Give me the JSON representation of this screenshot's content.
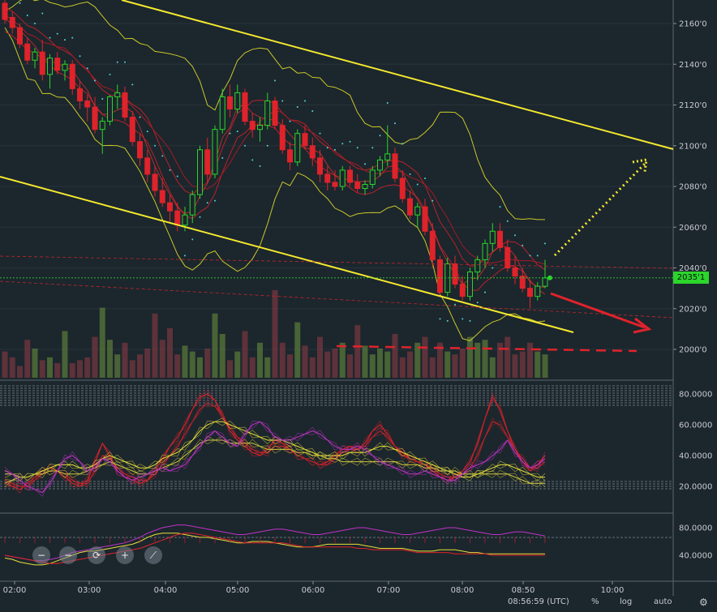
{
  "price_axis": {
    "labels": [
      "2160'0",
      "2140'0",
      "2120'0",
      "2100'0",
      "2080'0",
      "2060'0",
      "2040'0",
      "2020'0",
      "2000'0"
    ],
    "values": [
      2160,
      2140,
      2120,
      2100,
      2080,
      2060,
      2040,
      2020,
      2000
    ],
    "current_price_label": "2035'1",
    "current_price": 2035.1
  },
  "time_axis": {
    "labels": [
      "02:00",
      "03:00",
      "04:00",
      "05:00",
      "06:00",
      "07:00",
      "08:00",
      "08:50",
      "10:00"
    ]
  },
  "indicator1_axis": {
    "labels": [
      "80.0000",
      "60.0000",
      "40.0000",
      "20.0000"
    ],
    "values": [
      80,
      60,
      40,
      20
    ]
  },
  "indicator2_axis": {
    "labels": [
      "80.0000",
      "40.0000"
    ],
    "values": [
      80,
      40
    ]
  },
  "status_bar": {
    "clock": "08:56:59 (UTC)",
    "percent_label": "%",
    "log_label": "log",
    "auto_label": "auto"
  },
  "zoom_controls": {
    "zoom_out_label": "−",
    "zoom_out2_label": "−",
    "reset_label": "⟳",
    "zoom_in_label": "+",
    "draw_label": "⟋"
  },
  "colors": {
    "background": "#1c262d",
    "up_candle": "#2bd52b",
    "down_candle": "#e0232b",
    "trendline": "#f5ea2f",
    "arrow_down": "#e0232b",
    "arrow_up": "#f5ea2f",
    "price_line": "#2bd52b",
    "psar": "#4fd8d8"
  },
  "chart_data": [
    {
      "type": "candlestick",
      "title": "",
      "x_axis": "time (UTC), 5-minute bars",
      "y_axis": "price",
      "ylim": [
        1988,
        2170
      ],
      "x_ticks": [
        "02:00",
        "03:00",
        "04:00",
        "05:00",
        "06:00",
        "07:00",
        "08:00",
        "08:50",
        "10:00"
      ],
      "y_ticks": [
        2000,
        2020,
        2040,
        2060,
        2080,
        2100,
        2120,
        2140,
        2160
      ],
      "last_price": 2035.1,
      "ohlc": [
        [
          2170,
          2172,
          2160,
          2162
        ],
        [
          2163,
          2166,
          2155,
          2158
        ],
        [
          2158,
          2160,
          2148,
          2150
        ],
        [
          2150,
          2153,
          2140,
          2142
        ],
        [
          2142,
          2148,
          2138,
          2146
        ],
        [
          2146,
          2152,
          2132,
          2135
        ],
        [
          2135,
          2145,
          2128,
          2143
        ],
        [
          2143,
          2146,
          2135,
          2137
        ],
        [
          2137,
          2142,
          2132,
          2140
        ],
        [
          2140,
          2142,
          2125,
          2128
        ],
        [
          2128,
          2132,
          2118,
          2122
        ],
        [
          2122,
          2125,
          2112,
          2119
        ],
        [
          2119,
          2124,
          2106,
          2108
        ],
        [
          2108,
          2114,
          2096,
          2112
        ],
        [
          2112,
          2125,
          2110,
          2124
        ],
        [
          2124,
          2130,
          2118,
          2126
        ],
        [
          2126,
          2129,
          2112,
          2114
        ],
        [
          2114,
          2117,
          2100,
          2102
        ],
        [
          2102,
          2106,
          2090,
          2094
        ],
        [
          2094,
          2098,
          2082,
          2086
        ],
        [
          2086,
          2090,
          2075,
          2078
        ],
        [
          2078,
          2084,
          2070,
          2072
        ],
        [
          2072,
          2076,
          2062,
          2068
        ],
        [
          2068,
          2072,
          2058,
          2061
        ],
        [
          2061,
          2070,
          2058,
          2066
        ],
        [
          2066,
          2078,
          2062,
          2076
        ],
        [
          2076,
          2100,
          2074,
          2098
        ],
        [
          2098,
          2104,
          2082,
          2086
        ],
        [
          2086,
          2110,
          2084,
          2108
        ],
        [
          2108,
          2128,
          2106,
          2124
        ],
        [
          2124,
          2130,
          2114,
          2118
        ],
        [
          2118,
          2130,
          2116,
          2126
        ],
        [
          2126,
          2128,
          2110,
          2112
        ],
        [
          2112,
          2116,
          2104,
          2108
        ],
        [
          2108,
          2114,
          2102,
          2110
        ],
        [
          2110,
          2126,
          2108,
          2122
        ],
        [
          2122,
          2124,
          2108,
          2110
        ],
        [
          2110,
          2113,
          2096,
          2098
        ],
        [
          2098,
          2102,
          2088,
          2092
        ],
        [
          2092,
          2108,
          2090,
          2106
        ],
        [
          2106,
          2110,
          2098,
          2100
        ],
        [
          2100,
          2104,
          2090,
          2094
        ],
        [
          2094,
          2098,
          2082,
          2086
        ],
        [
          2086,
          2090,
          2078,
          2082
        ],
        [
          2082,
          2088,
          2078,
          2080
        ],
        [
          2080,
          2090,
          2078,
          2088
        ],
        [
          2088,
          2090,
          2080,
          2082
        ],
        [
          2082,
          2086,
          2077,
          2079
        ],
        [
          2079,
          2083,
          2076,
          2081
        ],
        [
          2081,
          2090,
          2079,
          2088
        ],
        [
          2088,
          2095,
          2085,
          2093
        ],
        [
          2093,
          2110,
          2090,
          2096
        ],
        [
          2096,
          2099,
          2082,
          2084
        ],
        [
          2084,
          2088,
          2072,
          2074
        ],
        [
          2074,
          2078,
          2064,
          2066
        ],
        [
          2066,
          2072,
          2060,
          2070
        ],
        [
          2070,
          2074,
          2056,
          2058
        ],
        [
          2058,
          2062,
          2040,
          2044
        ],
        [
          2044,
          2046,
          2026,
          2028
        ],
        [
          2028,
          2045,
          2026,
          2042
        ],
        [
          2042,
          2046,
          2030,
          2032
        ],
        [
          2032,
          2036,
          2024,
          2026
        ],
        [
          2026,
          2040,
          2024,
          2038
        ],
        [
          2038,
          2046,
          2034,
          2044
        ],
        [
          2044,
          2054,
          2040,
          2052
        ],
        [
          2052,
          2062,
          2048,
          2058
        ],
        [
          2058,
          2062,
          2048,
          2050
        ],
        [
          2050,
          2054,
          2038,
          2040
        ],
        [
          2040,
          2046,
          2032,
          2036
        ],
        [
          2036,
          2040,
          2028,
          2030
        ],
        [
          2030,
          2034,
          2020,
          2026
        ],
        [
          2026,
          2033,
          2024,
          2031
        ],
        [
          2031,
          2044,
          2030,
          2035.1
        ]
      ],
      "volume": [
        9,
        7,
        4,
        13,
        10,
        6,
        7,
        5,
        16,
        5,
        6,
        7,
        14,
        24,
        13,
        8,
        12,
        6,
        8,
        10,
        22,
        13,
        17,
        8,
        11,
        9,
        7,
        10,
        22,
        15,
        6,
        9,
        16,
        7,
        12,
        7,
        30,
        12,
        8,
        19,
        11,
        7,
        14,
        9,
        10,
        12,
        8,
        18,
        11,
        8,
        10,
        9,
        15,
        7,
        9,
        12,
        14,
        7,
        12,
        9,
        8,
        10,
        14,
        12,
        13,
        7,
        12,
        14,
        8,
        9,
        12,
        9,
        8
      ]
    },
    {
      "type": "line",
      "title": "",
      "ylim": [
        8,
        86
      ],
      "y_ticks": [
        20,
        40,
        60,
        80
      ],
      "description_values": "oscillator panel; values 0-100",
      "series": [
        {
          "values": [
            22,
            20,
            18,
            22,
            26,
            30,
            32,
            30,
            26,
            22,
            20,
            24,
            36,
            48,
            40,
            30,
            26,
            24,
            22,
            24,
            30,
            38,
            46,
            52,
            60,
            70,
            78,
            80,
            76,
            66,
            56,
            50,
            46,
            42,
            40,
            44,
            50,
            48,
            44,
            40,
            38,
            36,
            34,
            36,
            40,
            44,
            46,
            44,
            48,
            56,
            60,
            54,
            46,
            40,
            38,
            36,
            34,
            30,
            26,
            24,
            26,
            30,
            36,
            48,
            64,
            78,
            70,
            56,
            44,
            36,
            30,
            34,
            40
          ]
        },
        {
          "values": [
            24,
            22,
            20,
            20,
            24,
            28,
            30,
            30,
            28,
            24,
            22,
            22,
            30,
            40,
            38,
            32,
            28,
            26,
            24,
            24,
            28,
            34,
            40,
            46,
            54,
            62,
            70,
            74,
            72,
            66,
            58,
            52,
            48,
            44,
            42,
            42,
            46,
            46,
            44,
            40,
            38,
            36,
            34,
            34,
            38,
            42,
            44,
            44,
            46,
            52,
            56,
            52,
            46,
            42,
            38,
            36,
            34,
            32,
            28,
            26,
            26,
            28,
            32,
            40,
            52,
            62,
            60,
            52,
            44,
            38,
            32,
            32,
            36
          ]
        },
        {
          "values": [
            28,
            28,
            26,
            26,
            28,
            30,
            32,
            34,
            34,
            34,
            32,
            32,
            34,
            38,
            40,
            38,
            36,
            34,
            32,
            32,
            34,
            38,
            40,
            42,
            46,
            50,
            56,
            60,
            62,
            62,
            60,
            58,
            56,
            54,
            52,
            50,
            50,
            50,
            48,
            46,
            44,
            42,
            40,
            40,
            40,
            40,
            42,
            42,
            42,
            44,
            46,
            46,
            44,
            42,
            40,
            38,
            36,
            34,
            32,
            30,
            28,
            26,
            26,
            28,
            30,
            32,
            34,
            34,
            32,
            30,
            28,
            26,
            26
          ]
        },
        {
          "values": [
            22,
            24,
            26,
            26,
            28,
            28,
            30,
            30,
            28,
            28,
            28,
            30,
            32,
            34,
            36,
            34,
            32,
            30,
            28,
            28,
            30,
            32,
            34,
            36,
            40,
            44,
            48,
            50,
            50,
            50,
            48,
            48,
            48,
            48,
            46,
            44,
            44,
            44,
            44,
            42,
            42,
            40,
            40,
            38,
            38,
            36,
            36,
            36,
            36,
            36,
            36,
            36,
            36,
            34,
            34,
            34,
            32,
            32,
            30,
            30,
            30,
            28,
            28,
            28,
            28,
            28,
            28,
            28,
            26,
            24,
            22,
            22,
            22
          ]
        },
        {
          "values": [
            30,
            28,
            24,
            20,
            18,
            16,
            22,
            30,
            38,
            40,
            36,
            30,
            32,
            38,
            36,
            30,
            26,
            24,
            26,
            28,
            30,
            32,
            30,
            32,
            34,
            40,
            46,
            52,
            56,
            52,
            48,
            46,
            54,
            60,
            62,
            58,
            52,
            50,
            50,
            52,
            54,
            56,
            54,
            50,
            46,
            44,
            44,
            46,
            44,
            40,
            36,
            34,
            32,
            30,
            28,
            28,
            30,
            28,
            26,
            24,
            24,
            28,
            32,
            34,
            36,
            40,
            44,
            50,
            42,
            36,
            32,
            34,
            38
          ]
        }
      ]
    },
    {
      "type": "line",
      "title": "",
      "ylim": [
        8,
        100
      ],
      "y_ticks": [
        40,
        80
      ],
      "description_values": "second oscillator panel; values 0-100",
      "series": [
        {
          "values": [
            40,
            38,
            36,
            34,
            32,
            32,
            34,
            36,
            40,
            44,
            46,
            48,
            50,
            52,
            54,
            56,
            58,
            62,
            66,
            72,
            76,
            80,
            82,
            84,
            84,
            82,
            80,
            78,
            76,
            74,
            72,
            70,
            70,
            72,
            74,
            76,
            78,
            78,
            76,
            74,
            72,
            70,
            70,
            72,
            74,
            76,
            78,
            80,
            80,
            78,
            76,
            74,
            72,
            70,
            70,
            72,
            74,
            76,
            78,
            80,
            80,
            78,
            76,
            74,
            72,
            70,
            70,
            72,
            74,
            74,
            72,
            70,
            68
          ]
        },
        {
          "values": [
            36,
            34,
            30,
            28,
            26,
            26,
            28,
            32,
            36,
            40,
            44,
            46,
            46,
            48,
            50,
            52,
            54,
            56,
            60,
            66,
            70,
            72,
            72,
            72,
            70,
            68,
            66,
            66,
            64,
            62,
            60,
            58,
            58,
            60,
            60,
            60,
            58,
            56,
            54,
            52,
            52,
            52,
            54,
            56,
            56,
            56,
            56,
            56,
            54,
            52,
            50,
            50,
            50,
            50,
            48,
            46,
            46,
            46,
            48,
            48,
            48,
            46,
            44,
            44,
            42,
            42,
            42,
            42,
            42,
            42,
            42,
            42,
            42
          ]
        },
        {
          "values": [
            40,
            38,
            36,
            34,
            32,
            30,
            28,
            28,
            30,
            32,
            34,
            36,
            38,
            40,
            42,
            44,
            46,
            48,
            50,
            54,
            58,
            62,
            66,
            70,
            72,
            72,
            70,
            68,
            66,
            64,
            62,
            60,
            58,
            58,
            58,
            58,
            58,
            58,
            56,
            54,
            52,
            52,
            52,
            52,
            52,
            52,
            52,
            50,
            50,
            48,
            48,
            48,
            48,
            48,
            46,
            44,
            44,
            44,
            44,
            44,
            42,
            42,
            42,
            42,
            42,
            40,
            40,
            40,
            40,
            40,
            40,
            40,
            40
          ]
        }
      ]
    }
  ]
}
